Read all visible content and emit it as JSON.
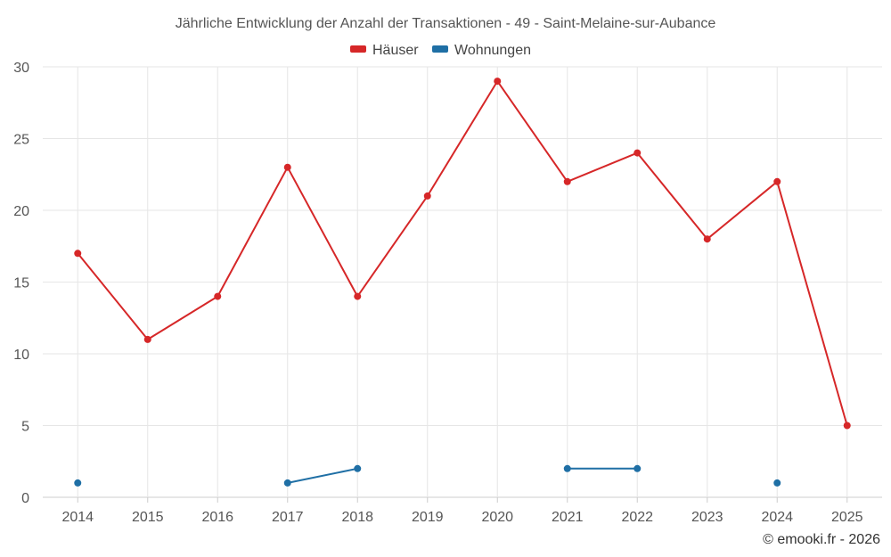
{
  "chart_data": {
    "type": "line",
    "title": "Jährliche Entwicklung der Anzahl der Transaktionen - 49 - Saint-Melaine-sur-Aubance",
    "categories": [
      "2014",
      "2015",
      "2016",
      "2017",
      "2018",
      "2019",
      "2020",
      "2021",
      "2022",
      "2023",
      "2024",
      "2025"
    ],
    "series": [
      {
        "name": "Häuser",
        "color": "#d62728",
        "values": [
          17,
          11,
          14,
          23,
          14,
          21,
          29,
          22,
          24,
          18,
          22,
          5
        ]
      },
      {
        "name": "Wohnungen",
        "color": "#1f6fa5",
        "values": [
          1,
          null,
          null,
          1,
          2,
          null,
          null,
          2,
          2,
          null,
          1,
          null
        ]
      }
    ],
    "ylim": [
      0,
      30
    ],
    "yticks": [
      0,
      5,
      10,
      15,
      20,
      25,
      30
    ],
    "xlabel": "",
    "ylabel": "",
    "grid": true,
    "legend": "top-center"
  },
  "credit": "© emooki.fr - 2026"
}
